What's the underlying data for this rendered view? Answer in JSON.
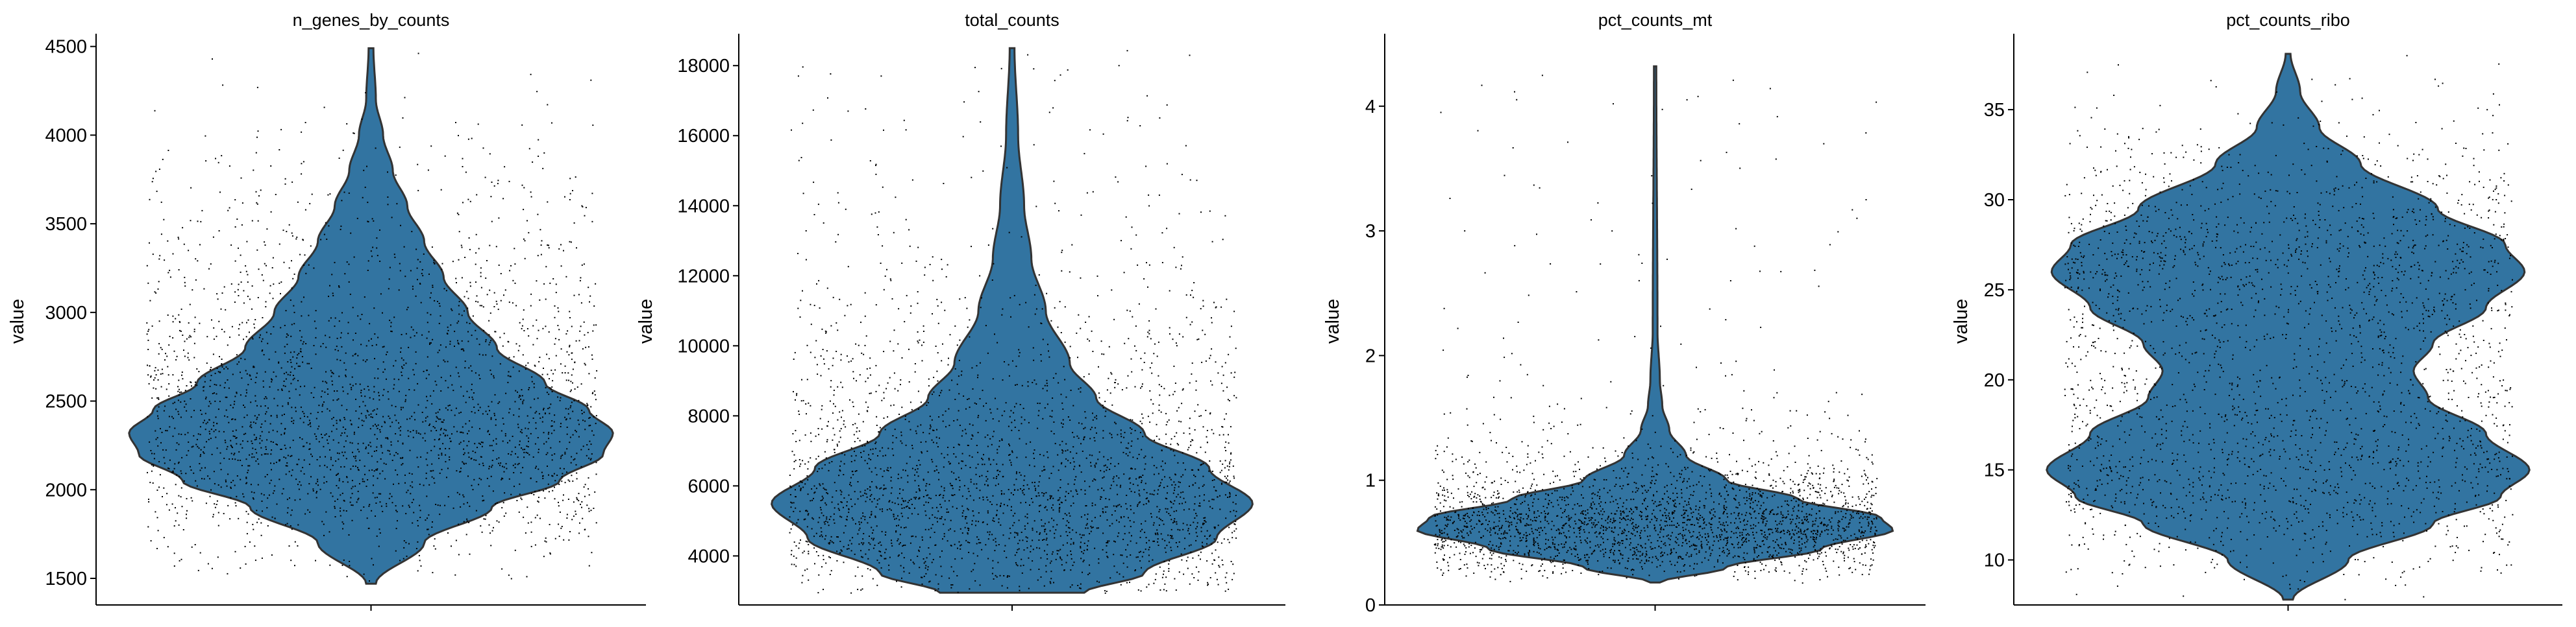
{
  "colors": {
    "violin_fill": "#3274a1",
    "violin_edge": "#333333",
    "points": "#000000",
    "axis": "#000000"
  },
  "chart_data": [
    {
      "type": "violin",
      "title": "n_genes_by_counts",
      "ylabel": "value",
      "ylim": [
        1350,
        4550
      ],
      "yticks": [
        1500,
        2000,
        2500,
        3000,
        3500,
        4000,
        4500
      ],
      "ytick_labels": [
        "1500",
        "2000",
        "2500",
        "3000",
        "3500",
        "4000",
        "4500"
      ],
      "data_range": [
        1470,
        4490
      ],
      "density_profile": [
        [
          1470,
          0.02
        ],
        [
          1700,
          0.22
        ],
        [
          1900,
          0.5
        ],
        [
          2050,
          0.78
        ],
        [
          2200,
          0.96
        ],
        [
          2320,
          1.0
        ],
        [
          2450,
          0.9
        ],
        [
          2600,
          0.72
        ],
        [
          2800,
          0.52
        ],
        [
          3000,
          0.4
        ],
        [
          3200,
          0.3
        ],
        [
          3400,
          0.22
        ],
        [
          3600,
          0.15
        ],
        [
          3800,
          0.09
        ],
        [
          4000,
          0.05
        ],
        [
          4200,
          0.02
        ],
        [
          4490,
          0.01
        ]
      ]
    },
    {
      "type": "violin",
      "title": "total_counts",
      "ylabel": "value",
      "ylim": [
        2600,
        18800
      ],
      "yticks": [
        4000,
        6000,
        8000,
        10000,
        12000,
        14000,
        16000,
        18000
      ],
      "ytick_labels": [
        "4000",
        "6000",
        "8000",
        "10000",
        "12000",
        "14000",
        "16000",
        "18000"
      ],
      "data_range": [
        2950,
        18500
      ],
      "density_profile": [
        [
          2950,
          0.3
        ],
        [
          3500,
          0.55
        ],
        [
          4500,
          0.85
        ],
        [
          5500,
          1.0
        ],
        [
          6500,
          0.82
        ],
        [
          7500,
          0.55
        ],
        [
          8500,
          0.35
        ],
        [
          9500,
          0.24
        ],
        [
          11000,
          0.14
        ],
        [
          12500,
          0.08
        ],
        [
          14000,
          0.05
        ],
        [
          16000,
          0.025
        ],
        [
          18500,
          0.01
        ]
      ]
    },
    {
      "type": "violin",
      "title": "pct_counts_mt",
      "ylabel": "value",
      "ylim": [
        0,
        4.55
      ],
      "yticks": [
        0,
        1,
        2,
        3,
        4
      ],
      "ytick_labels": [
        "0",
        "1",
        "2",
        "3",
        "4"
      ],
      "data_range": [
        0.18,
        4.32
      ],
      "density_profile": [
        [
          0.18,
          0.02
        ],
        [
          0.3,
          0.3
        ],
        [
          0.45,
          0.7
        ],
        [
          0.6,
          1.0
        ],
        [
          0.7,
          0.95
        ],
        [
          0.85,
          0.6
        ],
        [
          1.0,
          0.3
        ],
        [
          1.2,
          0.13
        ],
        [
          1.4,
          0.06
        ],
        [
          1.6,
          0.03
        ],
        [
          1.8,
          0.02
        ],
        [
          2.2,
          0.01
        ],
        [
          4.32,
          0.005
        ]
      ]
    },
    {
      "type": "violin",
      "title": "pct_counts_ribo",
      "ylabel": "value",
      "ylim": [
        7.5,
        39
      ],
      "yticks": [
        10,
        15,
        20,
        25,
        30,
        35
      ],
      "ytick_labels": [
        "10",
        "15",
        "20",
        "25",
        "30",
        "35"
      ],
      "data_range": [
        7.8,
        38.1
      ],
      "density_profile": [
        [
          7.8,
          0.02
        ],
        [
          10,
          0.25
        ],
        [
          12,
          0.6
        ],
        [
          13.5,
          0.88
        ],
        [
          15,
          1.0
        ],
        [
          17,
          0.82
        ],
        [
          19,
          0.58
        ],
        [
          20.5,
          0.52
        ],
        [
          22,
          0.6
        ],
        [
          24,
          0.82
        ],
        [
          26,
          0.98
        ],
        [
          27.5,
          0.9
        ],
        [
          29.5,
          0.62
        ],
        [
          32,
          0.3
        ],
        [
          34,
          0.13
        ],
        [
          36,
          0.05
        ],
        [
          38.1,
          0.01
        ]
      ]
    }
  ]
}
